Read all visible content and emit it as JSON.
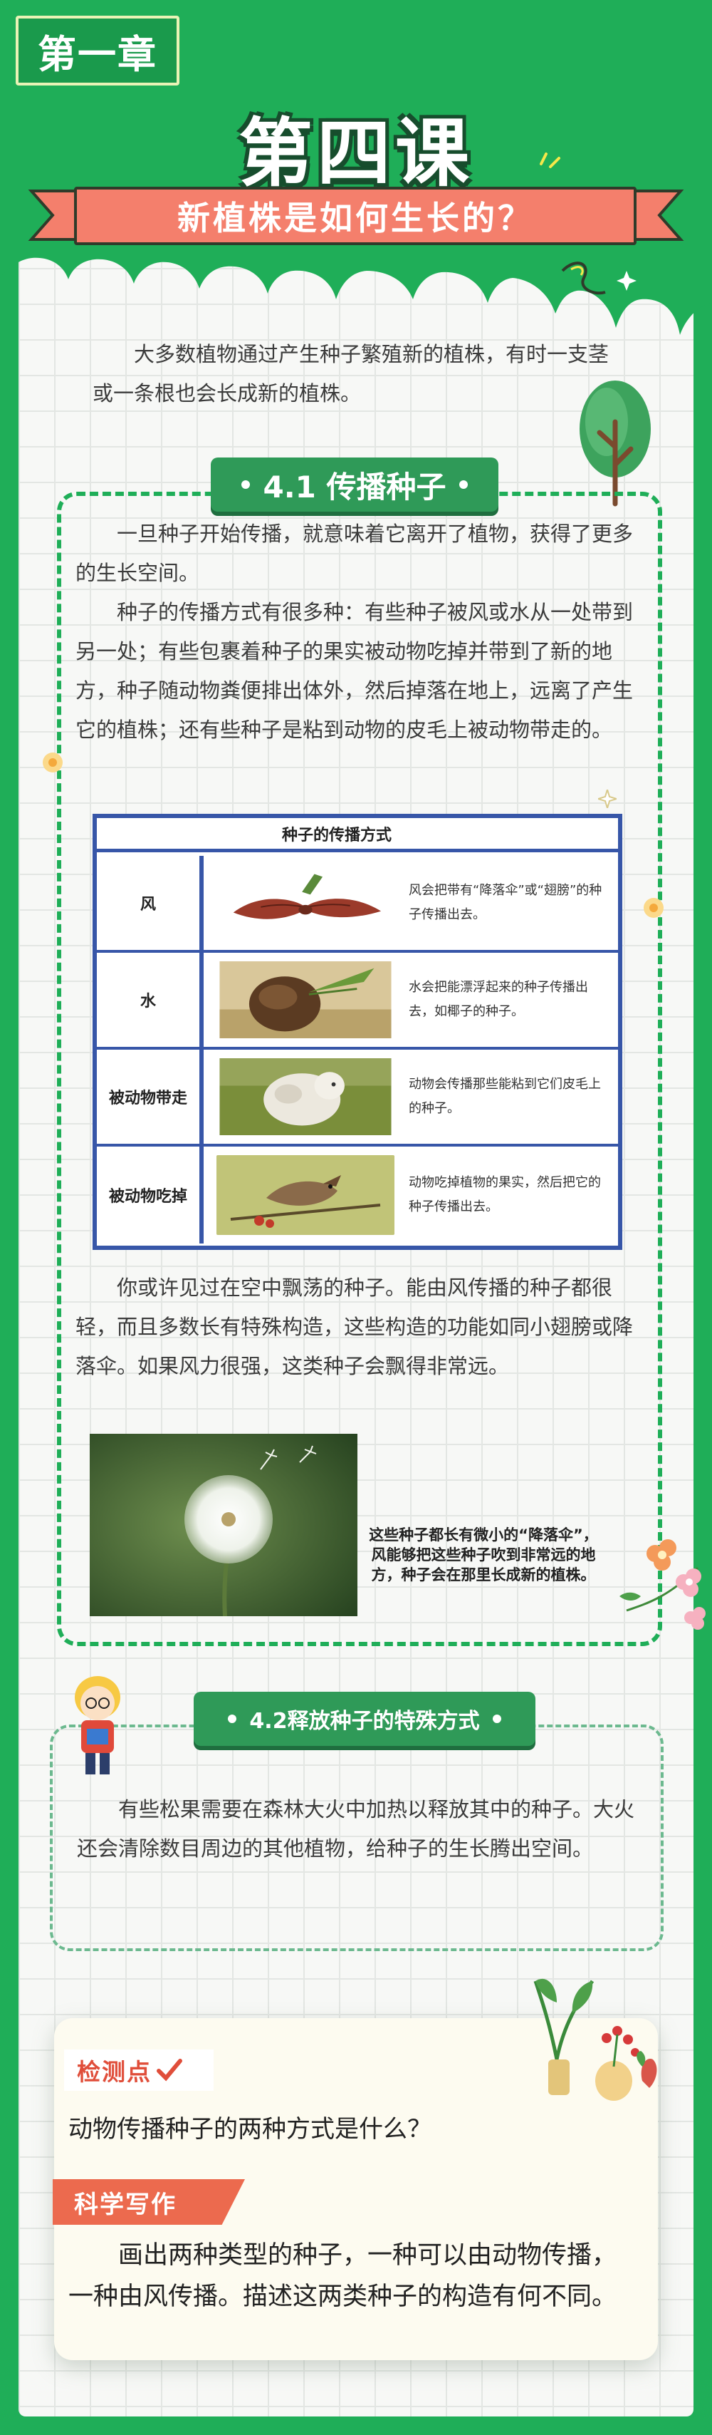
{
  "header": {
    "chapter": "第一章",
    "lesson": "第四课",
    "subtitle": "新植株是如何生长的？"
  },
  "intro": "大多数植物通过产生种子繁殖新的植株，有时一支茎或一条根也会长成新的植株。",
  "section1": {
    "title": "4.1 传播种子",
    "para1": "一旦种子开始传播，就意味着它离开了植物，获得了更多的生长空间。",
    "para2": "种子的传播方式有很多种：有些种子被风或水从一处带到另一处；有些包裹着种子的果实被动物吃掉并带到了新的地方，种子随动物粪便排出体外，然后掉落在地上，远离了产生它的植株；还有些种子是粘到动物的皮毛上被动物带走的。",
    "table": {
      "title": "种子的传播方式",
      "rows": [
        {
          "category": "风",
          "desc": "风会把带有“降落伞”或“翅膀”的种子传播出去。",
          "icon": "maple-seed-image"
        },
        {
          "category": "水",
          "desc": "水会把能漂浮起来的种子传播出去，如椰子的种子。",
          "icon": "coconut-image"
        },
        {
          "category": "被动物带走",
          "desc": "动物会传播那些能粘到它们皮毛上的种子。",
          "icon": "sheep-image"
        },
        {
          "category": "被动物吃掉",
          "desc": "动物吃掉植物的果实，然后把它的种子传播出去。",
          "icon": "bird-image"
        }
      ]
    },
    "para3": "你或许见过在空中飘荡的种子。能由风传播的种子都很轻，而且多数长有特殊构造，这些构造的功能如同小翅膀或降落伞。如果风力很强，这类种子会飘得非常远。",
    "caption": "这些种子都长有微小的“降落伞”，风能够把这些种子吹到非常远的地方，种子会在那里长成新的植株。"
  },
  "section2": {
    "title": "4.2释放种子的特殊方式",
    "para": "有些松果需要在森林大火中加热以释放其中的种子。大火还会清除数目周边的其他植物，给种子的生长腾出空间。"
  },
  "review": {
    "check_label": "检测点",
    "question": "动物传播种子的两种方式是什么？",
    "writing_label": "科学写作",
    "writing_text": "画出两种类型的种子，一种可以由动物传播，一种由风传播。描述这两类种子的构造有何不同。"
  },
  "colors": {
    "green": "#1fae58",
    "coral": "#f47f6c",
    "table_blue": "#3756a8"
  }
}
